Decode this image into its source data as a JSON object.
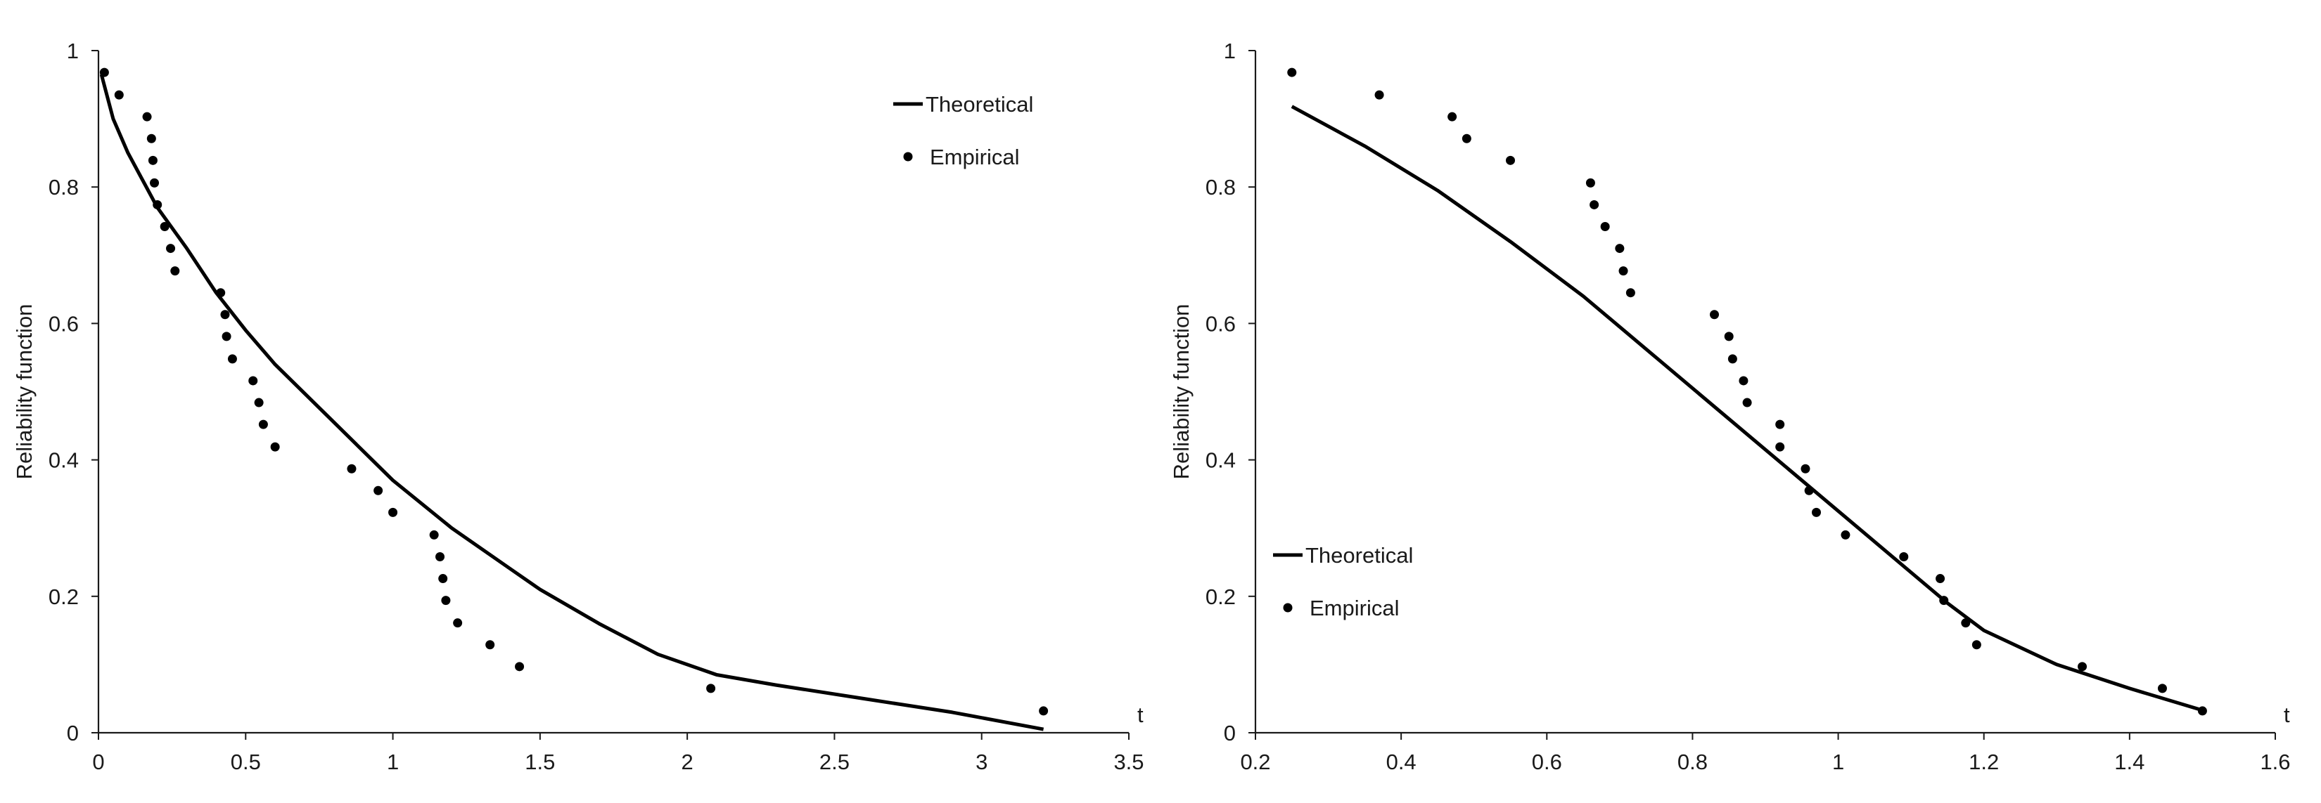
{
  "chart_data": [
    {
      "type": "line",
      "ylabel": "Reliability function",
      "xlabel": "t",
      "xlim": [
        0,
        3.5
      ],
      "ylim": [
        0,
        1
      ],
      "xticks": [
        "0",
        "0.5",
        "1",
        "1.5",
        "2",
        "2.5",
        "3",
        "3.5"
      ],
      "yticks": [
        "0",
        "0.2",
        "0.4",
        "0.6",
        "0.8",
        "1"
      ],
      "grid": false,
      "legend_position": "top-right",
      "series": [
        {
          "name": "Theoretical",
          "style": "line",
          "color": "#000000",
          "x": [
            0.01,
            0.05,
            0.1,
            0.2,
            0.3,
            0.4,
            0.5,
            0.6,
            0.8,
            1.0,
            1.2,
            1.4,
            1.5,
            1.7,
            1.9,
            2.1,
            2.3,
            2.6,
            2.9,
            3.21
          ],
          "y": [
            0.965,
            0.9,
            0.85,
            0.77,
            0.71,
            0.645,
            0.59,
            0.54,
            0.455,
            0.37,
            0.3,
            0.24,
            0.21,
            0.16,
            0.115,
            0.085,
            0.07,
            0.05,
            0.03,
            0.005
          ]
        },
        {
          "name": "Empirical",
          "style": "points",
          "color": "#000000",
          "x": [
            0.02,
            0.07,
            0.165,
            0.18,
            0.185,
            0.19,
            0.2,
            0.225,
            0.245,
            0.26,
            0.415,
            0.43,
            0.435,
            0.455,
            0.525,
            0.545,
            0.56,
            0.6,
            0.86,
            0.95,
            1.0,
            1.14,
            1.16,
            1.17,
            1.18,
            1.22,
            1.33,
            1.43,
            2.08,
            3.21
          ],
          "y": [
            0.968,
            0.935,
            0.903,
            0.871,
            0.839,
            0.806,
            0.774,
            0.742,
            0.71,
            0.677,
            0.645,
            0.613,
            0.581,
            0.548,
            0.516,
            0.484,
            0.452,
            0.419,
            0.387,
            0.355,
            0.323,
            0.29,
            0.258,
            0.226,
            0.194,
            0.161,
            0.129,
            0.097,
            0.065,
            0.032
          ]
        }
      ]
    },
    {
      "type": "line",
      "ylabel": "Reliability function",
      "xlabel": "t",
      "xlim": [
        0.2,
        1.6
      ],
      "ylim": [
        0,
        1
      ],
      "xticks": [
        "0.2",
        "0.4",
        "0.6",
        "0.8",
        "1",
        "1.2",
        "1.4",
        "1.6"
      ],
      "yticks": [
        "0",
        "0.2",
        "0.4",
        "0.6",
        "0.8",
        "1"
      ],
      "grid": false,
      "legend_position": "bottom-left",
      "series": [
        {
          "name": "Theoretical",
          "style": "line",
          "color": "#000000",
          "x": [
            0.25,
            0.35,
            0.45,
            0.55,
            0.65,
            0.75,
            0.85,
            0.95,
            1.05,
            1.15,
            1.2,
            1.3,
            1.4,
            1.5
          ],
          "y": [
            0.918,
            0.86,
            0.795,
            0.72,
            0.64,
            0.55,
            0.46,
            0.37,
            0.28,
            0.19,
            0.15,
            0.1,
            0.065,
            0.033
          ]
        },
        {
          "name": "Empirical",
          "style": "points",
          "color": "#000000",
          "x": [
            0.25,
            0.37,
            0.47,
            0.49,
            0.55,
            0.66,
            0.665,
            0.68,
            0.7,
            0.705,
            0.715,
            0.83,
            0.85,
            0.855,
            0.87,
            0.875,
            0.92,
            0.92,
            0.955,
            0.96,
            0.97,
            1.01,
            1.09,
            1.14,
            1.145,
            1.175,
            1.19,
            1.335,
            1.445,
            1.5
          ],
          "y": [
            0.968,
            0.935,
            0.903,
            0.871,
            0.839,
            0.806,
            0.774,
            0.742,
            0.71,
            0.677,
            0.645,
            0.613,
            0.581,
            0.548,
            0.516,
            0.484,
            0.452,
            0.419,
            0.387,
            0.355,
            0.323,
            0.29,
            0.258,
            0.226,
            0.194,
            0.161,
            0.129,
            0.097,
            0.065,
            0.032
          ]
        }
      ]
    }
  ]
}
